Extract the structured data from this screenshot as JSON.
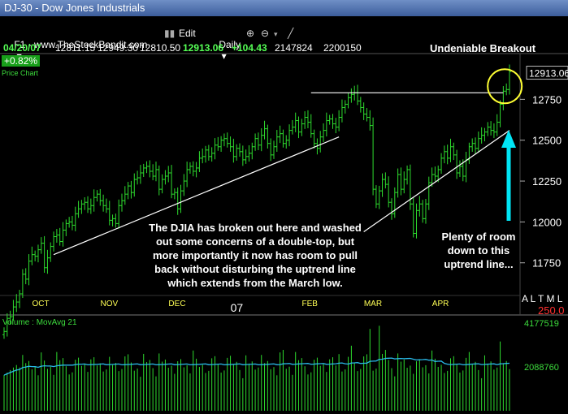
{
  "window": {
    "title": "DJ-30 - Dow Jones Industrials"
  },
  "toolbar": {
    "source": "F1 - www.TheStockBandit.com",
    "edit": "Edit",
    "period": "Daily"
  },
  "quote": {
    "date": "04/20/07",
    "open": "12811.15",
    "high": "12949.30",
    "low": "12810.50",
    "close": "12913.06",
    "change": "+104.43",
    "volume": "2147824",
    "extra": "2200150",
    "change_pct": "+0.82%"
  },
  "panels": {
    "price_label": "Price Chart",
    "volume_label": "Volume : MovAvg 21"
  },
  "right_panel": {
    "alarm_letters": "A L T M L",
    "alarm_value": "250.0"
  },
  "annotations": {
    "breakout": "Undeniable Breakout",
    "main_note": [
      "The DJIA has broken out here and washed",
      "out some concerns of a double-top, but",
      "more importantly it now has room to pull",
      "back without disturbing the uptrend line",
      "which extends from the March low."
    ],
    "room_note": [
      "Plenty of room",
      "down to this",
      "uptrend line..."
    ]
  },
  "colors": {
    "bars": "#2edc2e",
    "volume": "#2edc2e",
    "mavg": "#29b9e8",
    "annotation_line": "#ffffff",
    "circle": "#ffff33",
    "arrow": "#00e5f5",
    "month_labels": "#ffff55",
    "alarm": "#ff3030"
  },
  "chart_data": [
    {
      "type": "ohlc",
      "title": "",
      "x_tick_labels": [
        "OCT",
        "NOV",
        "DEC",
        "07",
        "FEB",
        "MAR",
        "APR"
      ],
      "y_tick_labels": [
        "12750",
        "12500",
        "12250",
        "12000",
        "11750"
      ],
      "last_price_label": "12913.06",
      "ylim": [
        11560,
        13020
      ],
      "closes": [
        11330,
        11410,
        11420,
        11480,
        11510,
        11560,
        11680,
        11650,
        11760,
        11800,
        11790,
        11830,
        11870,
        11720,
        11780,
        11850,
        11910,
        11920,
        11880,
        11950,
        11990,
        12000,
        11980,
        12050,
        12080,
        12110,
        12120,
        12080,
        12100,
        12150,
        12170,
        12130,
        12100,
        12080,
        12010,
        12020,
        11990,
        12100,
        12130,
        12170,
        12220,
        12180,
        12260,
        12270,
        12300,
        12330,
        12340,
        12310,
        12280,
        12320,
        12200,
        12260,
        12280,
        12300,
        12170,
        12180,
        12080,
        12190,
        12250,
        12320,
        12340,
        12310,
        12330,
        12390,
        12400,
        12440,
        12400,
        12420,
        12470,
        12460,
        12500,
        12510,
        12480,
        12460,
        12400,
        12450,
        12430,
        12380,
        12400,
        12420,
        12460,
        12510,
        12470,
        12530,
        12570,
        12480,
        12410,
        12460,
        12520,
        12540,
        12480,
        12500,
        12560,
        12580,
        12620,
        12550,
        12600,
        12640,
        12610,
        12540,
        12480,
        12450,
        12520,
        12560,
        12620,
        12630,
        12600,
        12580,
        12640,
        12700,
        12720,
        12760,
        12780,
        12790,
        12740,
        12700,
        12660,
        12640,
        12590,
        12200,
        12110,
        12190,
        12260,
        12230,
        12120,
        12050,
        12180,
        12290,
        12200,
        12260,
        12320,
        12110,
        11930,
        12070,
        12110,
        12020,
        12110,
        12240,
        12290,
        12280,
        12320,
        12390,
        12430,
        12390,
        12460,
        12410,
        12300,
        12340,
        12280,
        12380,
        12460,
        12480,
        12450,
        12510,
        12530,
        12550,
        12580,
        12560,
        12550,
        12610,
        12720,
        12800,
        12810,
        12920
      ],
      "trendlines": [
        {
          "from": [
            "OCT",
            11800
          ],
          "to": [
            "FEB",
            12520
          ]
        },
        {
          "from": [
            "MAR",
            11940
          ],
          "to": [
            "APR",
            12560
          ]
        }
      ],
      "resistance": 12790
    },
    {
      "type": "bar",
      "title": "Volume : MovAvg 21",
      "y_tick_labels": [
        "4177519",
        "2088760"
      ],
      "ylim": [
        0,
        4177519
      ],
      "series": [
        "volume",
        "moving average 21"
      ]
    }
  ]
}
